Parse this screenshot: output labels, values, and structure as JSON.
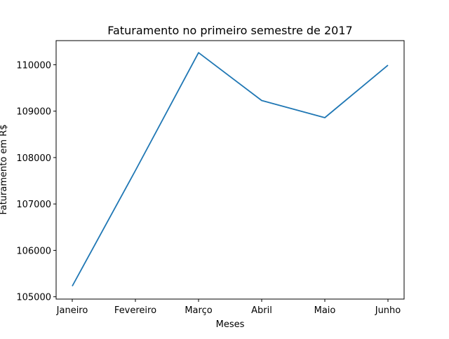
{
  "chart_data": {
    "type": "line",
    "title": "Faturamento no primeiro semestre de 2017",
    "xlabel": "Meses",
    "ylabel": "Faturamento em R$",
    "categories": [
      "Janeiro",
      "Fevereiro",
      "Março",
      "Abril",
      "Maio",
      "Junho"
    ],
    "series": [
      {
        "values": [
          105230,
          107720,
          110260,
          109230,
          108860,
          109990
        ],
        "color": "#1f77b4"
      }
    ],
    "ylim": [
      104950,
      110520
    ],
    "yticks": [
      105000,
      106000,
      107000,
      108000,
      109000,
      110000
    ],
    "grid": false,
    "legend": "none"
  }
}
